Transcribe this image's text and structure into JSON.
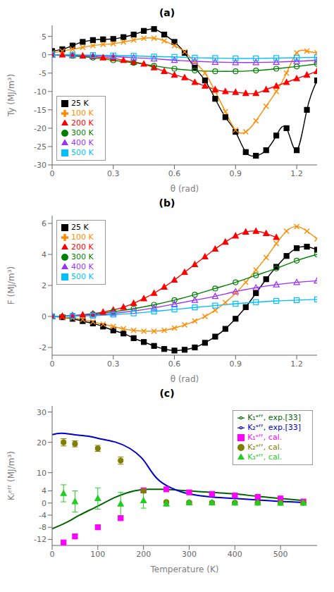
{
  "chart_data": [
    {
      "type": "line",
      "title": "(a)",
      "ylabel": "Ty (MJ/m³)",
      "xlabel": "θ (rad)",
      "ylim": [
        -30,
        8
      ],
      "xlim": [
        0,
        1.3
      ],
      "yticks": [
        -30,
        -25,
        -20,
        -15,
        -10,
        -5,
        0,
        5
      ],
      "xticks": [
        0,
        0.3,
        0.6,
        0.9,
        1.2
      ],
      "grid": false,
      "legend": "lower left",
      "series": [
        {
          "name": "25 K",
          "color": "black",
          "marker": "square",
          "x": [
            0.0,
            0.05,
            0.1,
            0.15,
            0.2,
            0.25,
            0.3,
            0.35,
            0.4,
            0.45,
            0.5,
            0.55,
            0.6,
            0.65,
            0.7,
            0.75,
            0.8,
            0.85,
            0.9,
            0.95,
            1.0,
            1.05,
            1.1,
            1.15,
            1.2,
            1.25,
            1.3
          ],
          "values": [
            1.0,
            1.5,
            2.5,
            3.5,
            4.0,
            4.2,
            4.3,
            4.8,
            5.5,
            6.5,
            7.0,
            5.5,
            3.5,
            0.5,
            -3.5,
            -7.0,
            -12.0,
            -17.0,
            -21.0,
            -26.5,
            -27.5,
            -26.0,
            -22.0,
            -20.0,
            -26.0,
            -15.0,
            -7.0
          ]
        },
        {
          "name": "100 K",
          "color": "#FF8C00",
          "marker": "x",
          "x": [
            0.0,
            0.05,
            0.1,
            0.15,
            0.2,
            0.25,
            0.3,
            0.35,
            0.4,
            0.45,
            0.5,
            0.55,
            0.6,
            0.65,
            0.7,
            0.75,
            0.8,
            0.85,
            0.9,
            0.95,
            1.0,
            1.05,
            1.1,
            1.15,
            1.2,
            1.25,
            1.3
          ],
          "values": [
            0.5,
            1.0,
            1.5,
            2.0,
            2.5,
            2.8,
            3.0,
            3.5,
            4.0,
            4.5,
            4.5,
            3.8,
            2.5,
            0.8,
            -2.0,
            -5.0,
            -10.0,
            -15.5,
            -20.5,
            -21.0,
            -18.0,
            -14.0,
            -10.0,
            -5.0,
            0.5,
            1.0,
            0.5
          ]
        },
        {
          "name": "200 K",
          "color": "red",
          "marker": "triangle",
          "x": [
            0.0,
            0.05,
            0.1,
            0.15,
            0.2,
            0.25,
            0.3,
            0.35,
            0.4,
            0.45,
            0.5,
            0.55,
            0.6,
            0.65,
            0.7,
            0.75,
            0.8,
            0.85,
            0.9,
            0.95,
            1.0,
            1.05,
            1.1,
            1.15,
            1.2,
            1.25,
            1.3
          ],
          "values": [
            0.0,
            0.0,
            -0.2,
            -0.3,
            -0.5,
            -0.8,
            -1.0,
            -1.5,
            -2.0,
            -2.5,
            -3.5,
            -4.5,
            -5.5,
            -6.2,
            -7.5,
            -8.5,
            -9.5,
            -10.0,
            -10.2,
            -10.5,
            -10.5,
            -9.5,
            -8.5,
            -7.5,
            -6.5,
            -5.5,
            -4.5
          ]
        },
        {
          "name": "300 K",
          "color": "green",
          "marker": "circle-open",
          "x": [
            0.0,
            0.1,
            0.2,
            0.3,
            0.4,
            0.5,
            0.6,
            0.7,
            0.8,
            0.9,
            1.0,
            1.1,
            1.2,
            1.3
          ],
          "values": [
            0.0,
            -0.3,
            -0.8,
            -1.5,
            -2.2,
            -3.0,
            -3.8,
            -4.3,
            -4.5,
            -4.5,
            -4.3,
            -3.8,
            -3.2,
            -2.5
          ]
        },
        {
          "name": "400 K",
          "color": "#9B30FF",
          "marker": "triangle-open",
          "x": [
            0.0,
            0.1,
            0.2,
            0.3,
            0.4,
            0.5,
            0.6,
            0.7,
            0.8,
            0.9,
            1.0,
            1.1,
            1.2,
            1.3
          ],
          "values": [
            0.0,
            -0.1,
            -0.3,
            -0.5,
            -0.8,
            -1.1,
            -1.5,
            -1.8,
            -2.0,
            -2.1,
            -2.1,
            -2.0,
            -1.8,
            -1.5
          ]
        },
        {
          "name": "500 K",
          "color": "#00BFFF",
          "marker": "square-open",
          "x": [
            0.0,
            0.1,
            0.2,
            0.3,
            0.4,
            0.5,
            0.6,
            0.7,
            0.8,
            0.9,
            1.0,
            1.1,
            1.2,
            1.3
          ],
          "values": [
            0.0,
            0.0,
            -0.1,
            -0.2,
            -0.3,
            -0.5,
            -0.6,
            -0.8,
            -0.9,
            -1.0,
            -1.0,
            -0.9,
            -0.8,
            -0.7
          ]
        }
      ]
    },
    {
      "type": "line",
      "title": "(b)",
      "ylabel": "F (MJ/m³)",
      "xlabel": "θ (rad)",
      "ylim": [
        -2.5,
        6.5
      ],
      "xlim": [
        0,
        1.3
      ],
      "yticks": [
        -2,
        0,
        2,
        4,
        6
      ],
      "xticks": [
        0,
        0.3,
        0.6,
        0.9,
        1.2
      ],
      "grid": false,
      "legend": "upper left",
      "series": [
        {
          "name": "25 K",
          "color": "black",
          "marker": "square",
          "x": [
            0.0,
            0.05,
            0.1,
            0.15,
            0.2,
            0.25,
            0.3,
            0.35,
            0.4,
            0.45,
            0.5,
            0.55,
            0.6,
            0.65,
            0.7,
            0.75,
            0.8,
            0.85,
            0.9,
            0.95,
            1.0,
            1.05,
            1.1,
            1.15,
            1.2,
            1.25,
            1.3
          ],
          "values": [
            0.0,
            -0.05,
            -0.15,
            -0.3,
            -0.45,
            -0.65,
            -0.9,
            -1.1,
            -1.4,
            -1.65,
            -1.9,
            -2.1,
            -2.2,
            -2.15,
            -2.0,
            -1.7,
            -1.3,
            -0.8,
            -0.15,
            0.6,
            1.5,
            2.4,
            3.2,
            3.9,
            4.4,
            4.5,
            4.3
          ]
        },
        {
          "name": "100 K",
          "color": "#FF8C00",
          "marker": "x",
          "x": [
            0.0,
            0.05,
            0.1,
            0.15,
            0.2,
            0.25,
            0.3,
            0.35,
            0.4,
            0.45,
            0.5,
            0.55,
            0.6,
            0.65,
            0.7,
            0.75,
            0.8,
            0.85,
            0.9,
            0.95,
            1.0,
            1.05,
            1.1,
            1.15,
            1.2,
            1.25,
            1.3
          ],
          "values": [
            0.0,
            -0.05,
            -0.1,
            -0.2,
            -0.35,
            -0.5,
            -0.65,
            -0.8,
            -0.9,
            -0.95,
            -0.95,
            -0.9,
            -0.75,
            -0.55,
            -0.3,
            0.0,
            0.4,
            0.9,
            1.5,
            2.2,
            3.0,
            3.8,
            4.7,
            5.5,
            5.8,
            5.5,
            5.0
          ]
        },
        {
          "name": "200 K",
          "color": "red",
          "marker": "triangle",
          "x": [
            0.0,
            0.05,
            0.1,
            0.15,
            0.2,
            0.25,
            0.3,
            0.35,
            0.4,
            0.45,
            0.5,
            0.55,
            0.6,
            0.65,
            0.7,
            0.75,
            0.8,
            0.85,
            0.9,
            0.95,
            1.0,
            1.05,
            1.1
          ],
          "values": [
            0.0,
            0.02,
            0.05,
            0.1,
            0.18,
            0.28,
            0.42,
            0.6,
            0.85,
            1.15,
            1.5,
            1.9,
            2.35,
            2.85,
            3.35,
            3.85,
            4.35,
            4.8,
            5.2,
            5.45,
            5.5,
            5.35,
            5.1
          ]
        },
        {
          "name": "300 K",
          "color": "green",
          "marker": "circle-open",
          "x": [
            0.0,
            0.1,
            0.2,
            0.3,
            0.4,
            0.5,
            0.6,
            0.7,
            0.8,
            0.9,
            1.0,
            1.1,
            1.2,
            1.3
          ],
          "values": [
            0.0,
            0.05,
            0.15,
            0.3,
            0.5,
            0.75,
            1.05,
            1.4,
            1.8,
            2.2,
            2.65,
            3.1,
            3.6,
            4.0
          ]
        },
        {
          "name": "400 K",
          "color": "#9B30FF",
          "marker": "triangle-open",
          "x": [
            0.0,
            0.1,
            0.2,
            0.3,
            0.4,
            0.5,
            0.6,
            0.7,
            0.8,
            0.9,
            1.0,
            1.1,
            1.2,
            1.3
          ],
          "values": [
            0.0,
            0.05,
            0.1,
            0.2,
            0.35,
            0.55,
            0.8,
            1.05,
            1.3,
            1.6,
            1.85,
            2.05,
            2.2,
            2.3
          ]
        },
        {
          "name": "500 K",
          "color": "#00BFFF",
          "marker": "square-open",
          "x": [
            0.0,
            0.1,
            0.2,
            0.3,
            0.4,
            0.5,
            0.6,
            0.7,
            0.8,
            0.9,
            1.0,
            1.1,
            1.2,
            1.3
          ],
          "values": [
            0.0,
            0.02,
            0.05,
            0.12,
            0.2,
            0.32,
            0.45,
            0.58,
            0.7,
            0.82,
            0.92,
            1.0,
            1.05,
            1.1
          ]
        }
      ]
    },
    {
      "type": "line",
      "title": "(c)",
      "ylabel": "Kᵢᵉᶠᶠ (MJ/m³)",
      "xlabel": "Temperature (K)",
      "ylim": [
        -14,
        32
      ],
      "xlim": [
        0,
        580
      ],
      "yticks": [
        -12,
        -8,
        -4,
        0,
        4,
        10,
        20,
        30
      ],
      "xticks": [
        0,
        100,
        200,
        300,
        400,
        500
      ],
      "grid": false,
      "legend": "upper right",
      "series": [
        {
          "name": "K₁ᵉᶠᶠ, exp.[33]",
          "type": "line",
          "color": "#006400",
          "x": [
            0,
            30,
            60,
            100,
            140,
            180,
            210,
            240,
            280,
            320,
            360,
            400,
            450,
            500,
            550
          ],
          "values": [
            -8.5,
            -6.5,
            -4.0,
            -1.0,
            2.0,
            4.0,
            4.5,
            4.5,
            4.2,
            3.8,
            3.4,
            3.0,
            2.2,
            1.5,
            0.8
          ]
        },
        {
          "name": "K₂ᵉᶠᶠ, exp.[33]",
          "type": "line",
          "color": "#0000CD",
          "x": [
            0,
            20,
            50,
            80,
            110,
            140,
            170,
            195,
            210,
            230,
            260,
            300,
            350,
            400,
            450,
            500,
            550
          ],
          "values": [
            22.5,
            23.0,
            22.5,
            22.0,
            21.0,
            20.0,
            18.0,
            15.0,
            12.0,
            8.0,
            5.0,
            3.0,
            2.0,
            1.5,
            1.0,
            0.5,
            0.2
          ]
        },
        {
          "name": "K₁ᵉᶠᶠ, cal.",
          "type": "scatter",
          "marker": "square",
          "color": "magenta",
          "x": [
            25,
            50,
            100,
            150,
            200,
            250,
            300,
            350,
            400,
            450,
            500,
            550
          ],
          "values": [
            -13.0,
            -11.0,
            -8.0,
            -5.0,
            4.2,
            4.5,
            3.5,
            3.0,
            2.5,
            2.0,
            1.5,
            0.5
          ],
          "errors": [
            0.5,
            0.5,
            0.5,
            0.5,
            0.4,
            0.3,
            0.3,
            0.3,
            0.3,
            0.3,
            0.3,
            0.3
          ]
        },
        {
          "name": "K₂ᵉᶠᶠ, cal.",
          "type": "scatter",
          "marker": "circle",
          "color": "#808000",
          "x": [
            25,
            50,
            100,
            150,
            200,
            250,
            300,
            350,
            400,
            450,
            500,
            550
          ],
          "values": [
            20.0,
            19.5,
            18.0,
            14.0,
            4.0,
            0.3,
            0.15,
            0.1,
            0.1,
            0.08,
            0.05,
            0.03
          ],
          "errors": [
            1.2,
            1.0,
            1.0,
            1.2,
            0.5,
            0.3,
            0.15,
            0.1,
            0.1,
            0.08,
            0.05,
            0.03
          ]
        },
        {
          "name": "K₃ᵉᶠᶠ, cal.",
          "type": "scatter",
          "marker": "triangle",
          "color": "#22CC22",
          "x": [
            25,
            50,
            100,
            150,
            200,
            250,
            300,
            350,
            400,
            450,
            500,
            550
          ],
          "values": [
            3.2,
            0.5,
            1.5,
            -0.3,
            0.8,
            -0.2,
            0.15,
            0.1,
            0.05,
            0.05,
            0.02,
            0.02
          ],
          "errors": [
            2.8,
            3.5,
            3.5,
            3.8,
            2.5,
            0.8,
            0.5,
            0.4,
            0.3,
            0.2,
            0.1,
            0.1
          ]
        }
      ]
    }
  ]
}
